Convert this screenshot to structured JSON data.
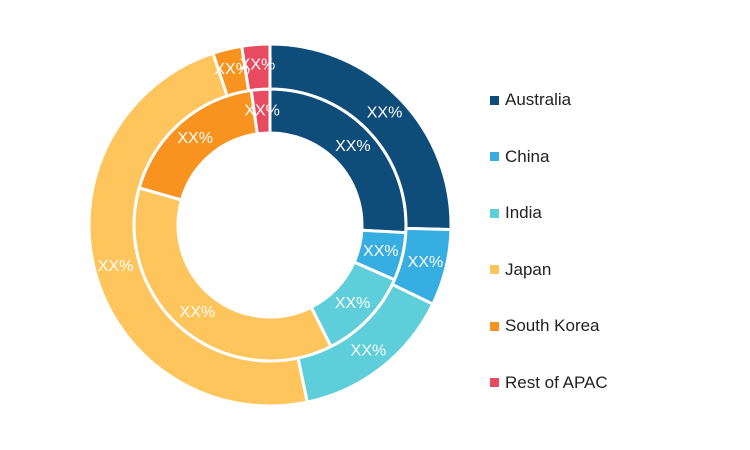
{
  "chart_data": {
    "type": "pie",
    "variant": "double-donut",
    "categories": [
      "Australia",
      "China",
      "India",
      "Japan",
      "South Korea",
      "Rest of APAC"
    ],
    "colors": [
      "#0e4c7a",
      "#37aee2",
      "#5ecfda",
      "#fdc55c",
      "#f7931e",
      "#e84a5f"
    ],
    "series": [
      {
        "ring": "inner",
        "values": [
          25.9,
          5.7,
          11.0,
          36.8,
          18.4,
          2.2
        ],
        "labels": [
          "XX%",
          "XX%",
          "XX%",
          "XX%",
          "XX%",
          "XX%"
        ]
      },
      {
        "ring": "outer",
        "values": [
          25.4,
          6.8,
          14.5,
          48.2,
          2.6,
          2.5
        ],
        "labels": [
          "XX%",
          "XX%",
          "XX%",
          "XX%",
          "XX%",
          "XX%"
        ]
      }
    ],
    "legend": {
      "position": "right",
      "items": [
        "Australia",
        "China",
        "India",
        "Japan",
        "South Korea",
        "Rest of APAC"
      ]
    }
  }
}
